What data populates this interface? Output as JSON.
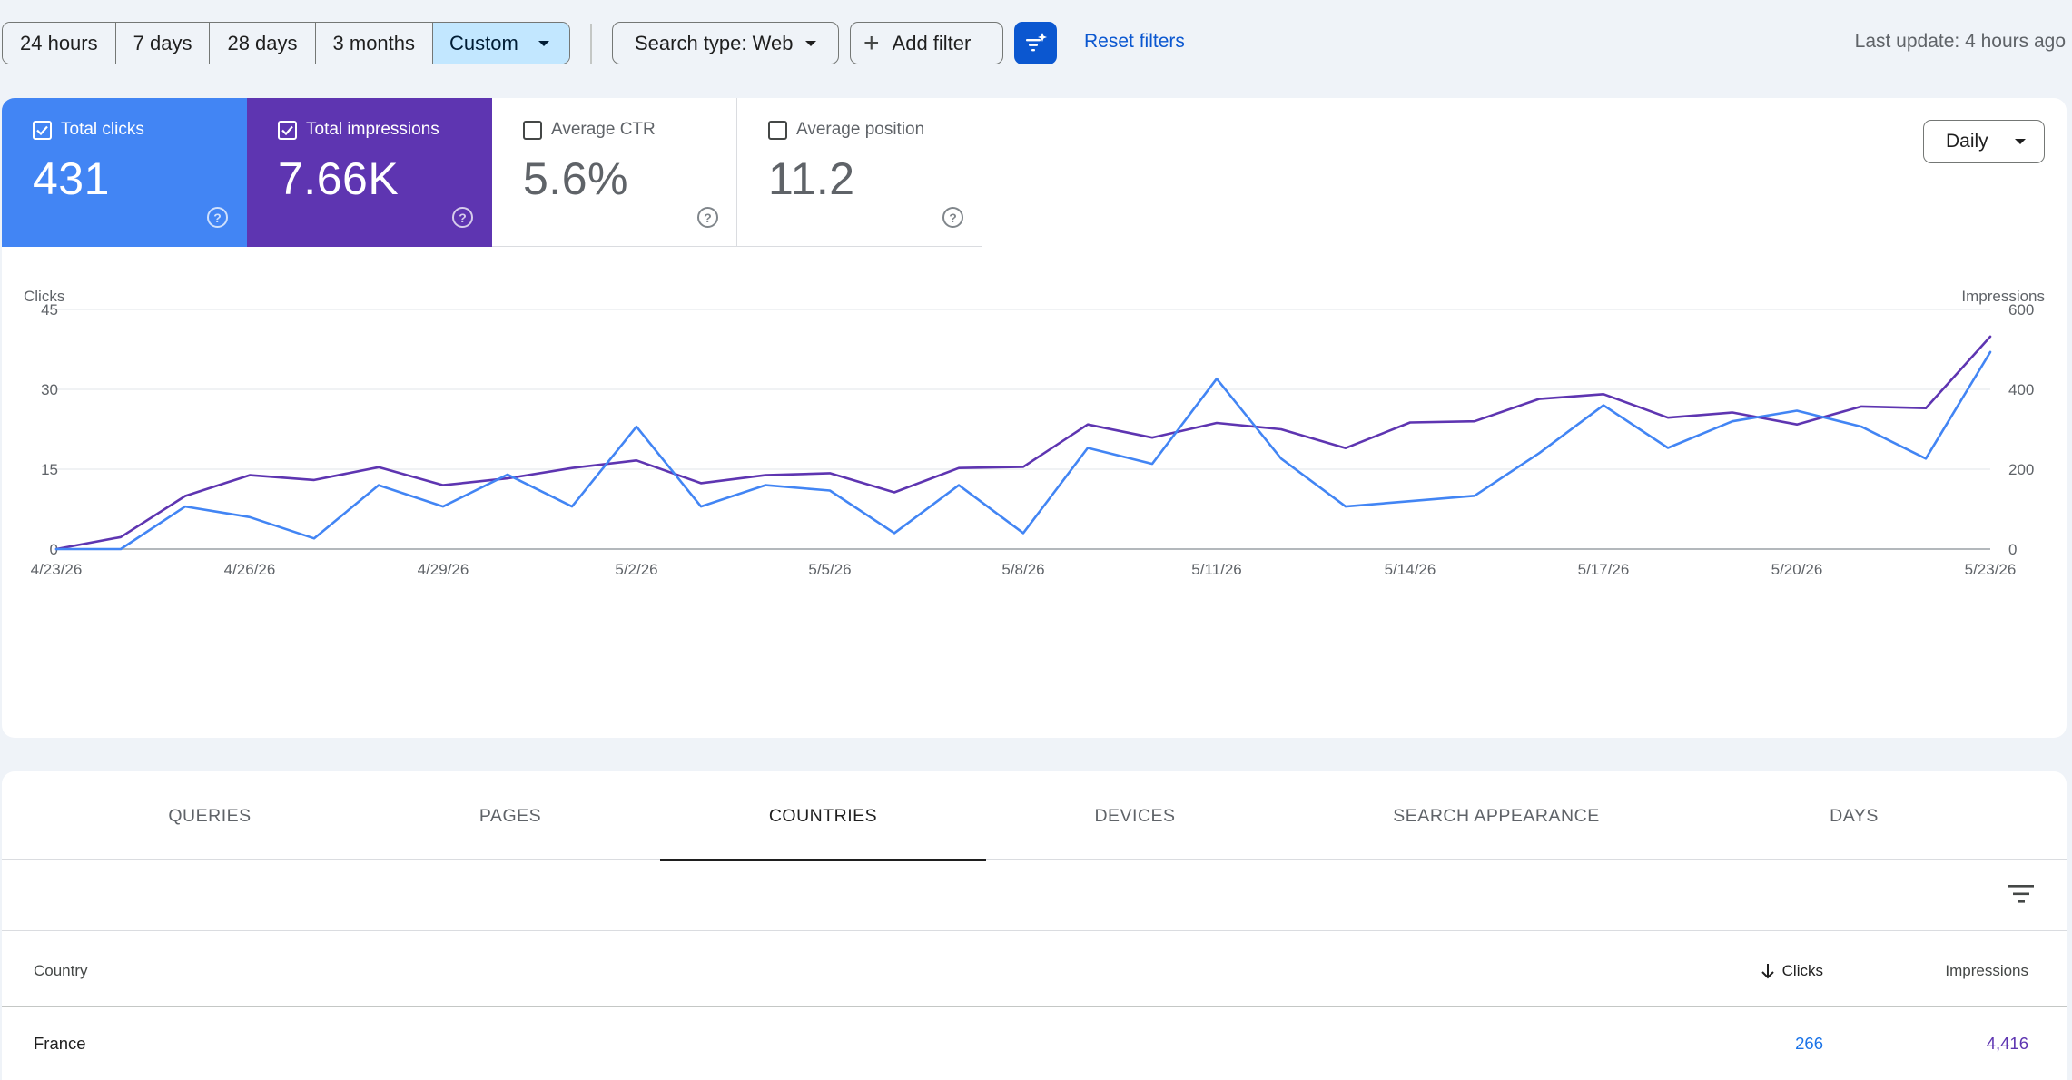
{
  "toolbar": {
    "ranges": [
      "24 hours",
      "7 days",
      "28 days",
      "3 months",
      "Custom"
    ],
    "search_type": "Search type: Web",
    "add_filter": "Add filter",
    "reset_filters": "Reset filters",
    "last_update": "Last update: 4 hours ago"
  },
  "metrics": {
    "clicks": {
      "label": "Total clicks",
      "value": "431",
      "checked": true
    },
    "impressions": {
      "label": "Total impressions",
      "value": "7.66K",
      "checked": true
    },
    "ctr": {
      "label": "Average CTR",
      "value": "5.6%",
      "checked": false
    },
    "position": {
      "label": "Average position",
      "value": "11.2",
      "checked": false
    }
  },
  "granularity": "Daily",
  "colors": {
    "clicks": "#4285f4",
    "impressions": "#5e35b1",
    "accent": "#0b57d0"
  },
  "chart_data": {
    "type": "line",
    "ylabel": "Clicks",
    "y2label": "Impressions",
    "ylim": [
      0,
      45
    ],
    "y2lim": [
      0,
      600
    ],
    "yticks": [
      "0",
      "15",
      "30",
      "45"
    ],
    "y2ticks": [
      "0",
      "200",
      "400",
      "600"
    ],
    "grid": true,
    "x_tick_labels": [
      "4/23/26",
      "4/26/26",
      "4/29/26",
      "5/2/26",
      "5/5/26",
      "5/8/26",
      "5/11/26",
      "5/14/26",
      "5/17/26",
      "5/20/26",
      "5/23/26"
    ],
    "x": [
      "4/23/26",
      "4/24/26",
      "4/25/26",
      "4/26/26",
      "4/27/26",
      "4/28/26",
      "4/29/26",
      "4/30/26",
      "5/1/26",
      "5/2/26",
      "5/3/26",
      "5/4/26",
      "5/5/26",
      "5/6/26",
      "5/7/26",
      "5/8/26",
      "5/9/26",
      "5/10/26",
      "5/11/26",
      "5/12/26",
      "5/13/26",
      "5/14/26",
      "5/15/26",
      "5/16/26",
      "5/17/26",
      "5/18/26",
      "5/19/26",
      "5/20/26",
      "5/21/26",
      "5/22/26",
      "5/23/26"
    ],
    "series": [
      {
        "name": "Clicks",
        "axis": "left",
        "values": [
          0,
          0,
          8,
          6,
          2,
          12,
          8,
          14,
          8,
          23,
          8,
          12,
          11,
          3,
          12,
          3,
          19,
          16,
          32,
          17,
          8,
          9,
          10,
          18,
          27,
          19,
          24,
          26,
          23,
          17,
          37
        ]
      },
      {
        "name": "Impressions",
        "axis": "right",
        "values": [
          0,
          30,
          133,
          185,
          173,
          205,
          160,
          177,
          203,
          222,
          165,
          185,
          190,
          142,
          203,
          206,
          312,
          279,
          316,
          300,
          253,
          317,
          320,
          376,
          388,
          329,
          342,
          312,
          357,
          353,
          532
        ]
      }
    ]
  },
  "table": {
    "tabs": [
      "QUERIES",
      "PAGES",
      "COUNTRIES",
      "DEVICES",
      "SEARCH APPEARANCE",
      "DAYS"
    ],
    "active_tab": "COUNTRIES",
    "headers": {
      "country": "Country",
      "clicks": "Clicks",
      "impressions": "Impressions"
    },
    "rows": [
      {
        "country": "France",
        "clicks": "266",
        "impressions": "4,416"
      }
    ]
  }
}
